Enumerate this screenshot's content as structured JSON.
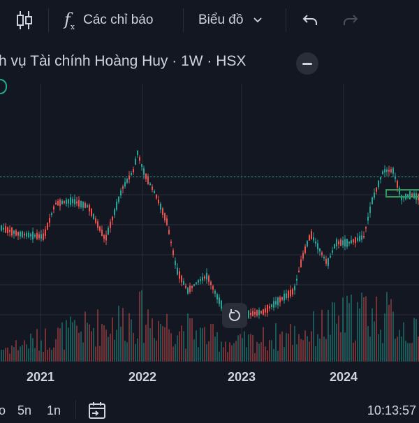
{
  "toolbar": {
    "indicators_label": "Các chỉ báo",
    "chart_type_label": "Biểu đồ"
  },
  "header": {
    "title": "h vụ Tài chính Hoàng Huy · 1W · HSX"
  },
  "colors": {
    "background": "#131722",
    "up": "#26a69a",
    "down": "#ef5350",
    "grid": "#2a2e39",
    "price_line": "#22ab94",
    "text": "#d1d4dc"
  },
  "icons": {
    "candles": "candlestick-icon",
    "indicators": "function-icon",
    "chart_type": "chevron-down-icon",
    "undo": "undo-icon",
    "redo": "redo-icon",
    "reset": "reset-icon",
    "calendar": "calendar-goto-icon",
    "collapse": "minus-icon"
  },
  "chart_data": {
    "type": "candlestick",
    "x_ticks": [
      "2021",
      "2022",
      "2023",
      "2024"
    ],
    "segments": [
      [
        0,
        9
      ],
      [
        25,
        7
      ],
      [
        62,
        6
      ],
      [
        78,
        17
      ],
      [
        102,
        18
      ],
      [
        126,
        16
      ],
      [
        150,
        5
      ],
      [
        174,
        22
      ],
      [
        190,
        28
      ],
      [
        196,
        34
      ],
      [
        206,
        27
      ],
      [
        222,
        20
      ],
      [
        238,
        11
      ],
      [
        252,
        -5
      ],
      [
        268,
        -12
      ],
      [
        282,
        -9
      ],
      [
        296,
        -7
      ],
      [
        310,
        -14
      ],
      [
        326,
        -21
      ],
      [
        350,
        -20
      ],
      [
        376,
        -19
      ],
      [
        400,
        -15
      ],
      [
        420,
        -12
      ],
      [
        432,
        -1
      ],
      [
        444,
        7
      ],
      [
        456,
        2
      ],
      [
        468,
        -3
      ],
      [
        480,
        4
      ],
      [
        498,
        4
      ],
      [
        520,
        6
      ],
      [
        532,
        18
      ],
      [
        548,
        28
      ],
      [
        562,
        28
      ],
      [
        574,
        19
      ],
      [
        588,
        20
      ],
      [
        600,
        19
      ]
    ],
    "volume_peaks": [
      [
        0,
        0.25
      ],
      [
        200,
        0.9
      ],
      [
        335,
        0.35
      ],
      [
        440,
        0.6
      ],
      [
        524,
        1.0
      ],
      [
        560,
        0.85
      ],
      [
        600,
        0.5
      ]
    ],
    "price_line_level": 26,
    "grid_levels": [
      26,
      20,
      10,
      0,
      -10,
      -20
    ]
  },
  "bottom": {
    "ranges": [
      "o",
      "5n",
      "1n"
    ],
    "clock": "10:13:57"
  }
}
